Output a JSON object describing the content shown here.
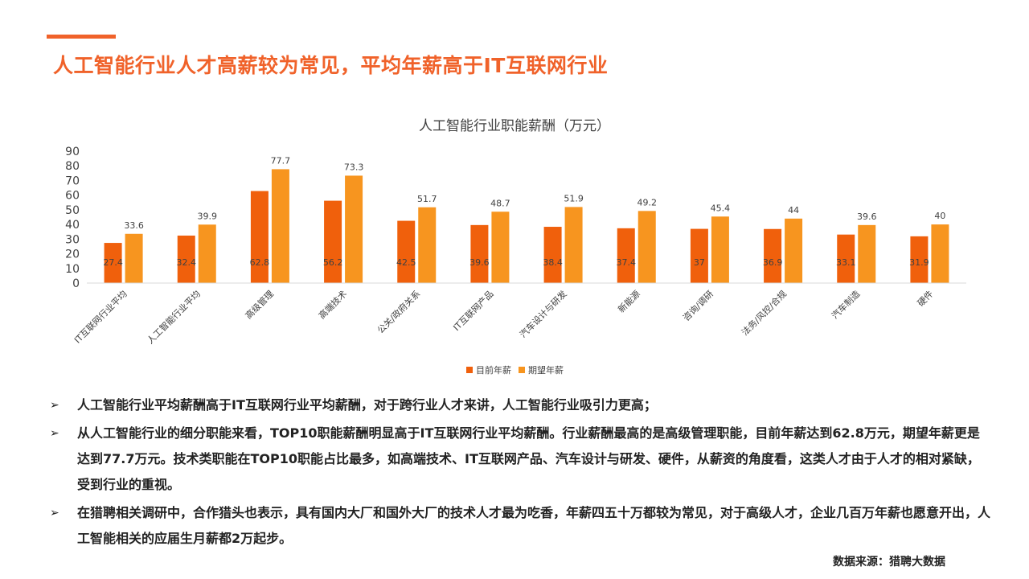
{
  "slide": {
    "title": "人工智能行业人才高薪较为常见，平均年薪高于IT互联网行业",
    "accent_color": "#f0622a",
    "source": "数据来源：猎聘大数据",
    "bullet_icon": "arrow-right-icon",
    "bullets": [
      "人工智能行业平均薪酬高于IT互联网行业平均薪酬，对于跨行业人才来讲，人工智能行业吸引力更高；",
      "从人工智能行业的细分职能来看，TOP10职能薪酬明显高于IT互联网行业平均薪酬。行业薪酬最高的是高级管理职能，目前年薪达到62.8万元，期望年薪更是达到77.7万元。技术类职能在TOP10职能占比最多，如高端技术、IT互联网产品、汽车设计与研发、硬件，从薪资的角度看，这类人才由于人才的相对紧缺，受到行业的重视。",
      "在猎聘相关调研中，合作猎头也表示，具有国内大厂和国外大厂的技术人才最为吃香，年薪四五十万都较为常见，对于高级人才，企业几百万年薪也愿意开出，人工智能相关的应届生月薪都2万起步。"
    ]
  },
  "chart_data": {
    "type": "bar",
    "title": "人工智能行业职能薪酬（万元）",
    "xlabel": "",
    "ylabel": "",
    "ylim": [
      0,
      90
    ],
    "yticks": [
      0,
      10,
      20,
      30,
      40,
      50,
      60,
      70,
      80,
      90
    ],
    "grid": false,
    "legend_position": "bottom",
    "categories": [
      "IT互联网行业平均",
      "人工智能行业平均",
      "高级管理",
      "高端技术",
      "公关/政府关系",
      "IT互联网产品",
      "汽车设计与研发",
      "新能源",
      "咨询/调研",
      "法务/风控/合规",
      "汽车制造",
      "硬件"
    ],
    "series": [
      {
        "name": "目前年薪",
        "color": "#f0600c",
        "values": [
          27.4,
          32.4,
          62.8,
          56.2,
          42.5,
          39.6,
          38.4,
          37.4,
          37,
          36.9,
          33.1,
          31.9
        ]
      },
      {
        "name": "期望年薪",
        "color": "#f7951f",
        "values": [
          33.6,
          39.9,
          77.7,
          73.3,
          51.7,
          48.7,
          51.9,
          49.2,
          45.4,
          44,
          39.6,
          40
        ]
      }
    ]
  }
}
